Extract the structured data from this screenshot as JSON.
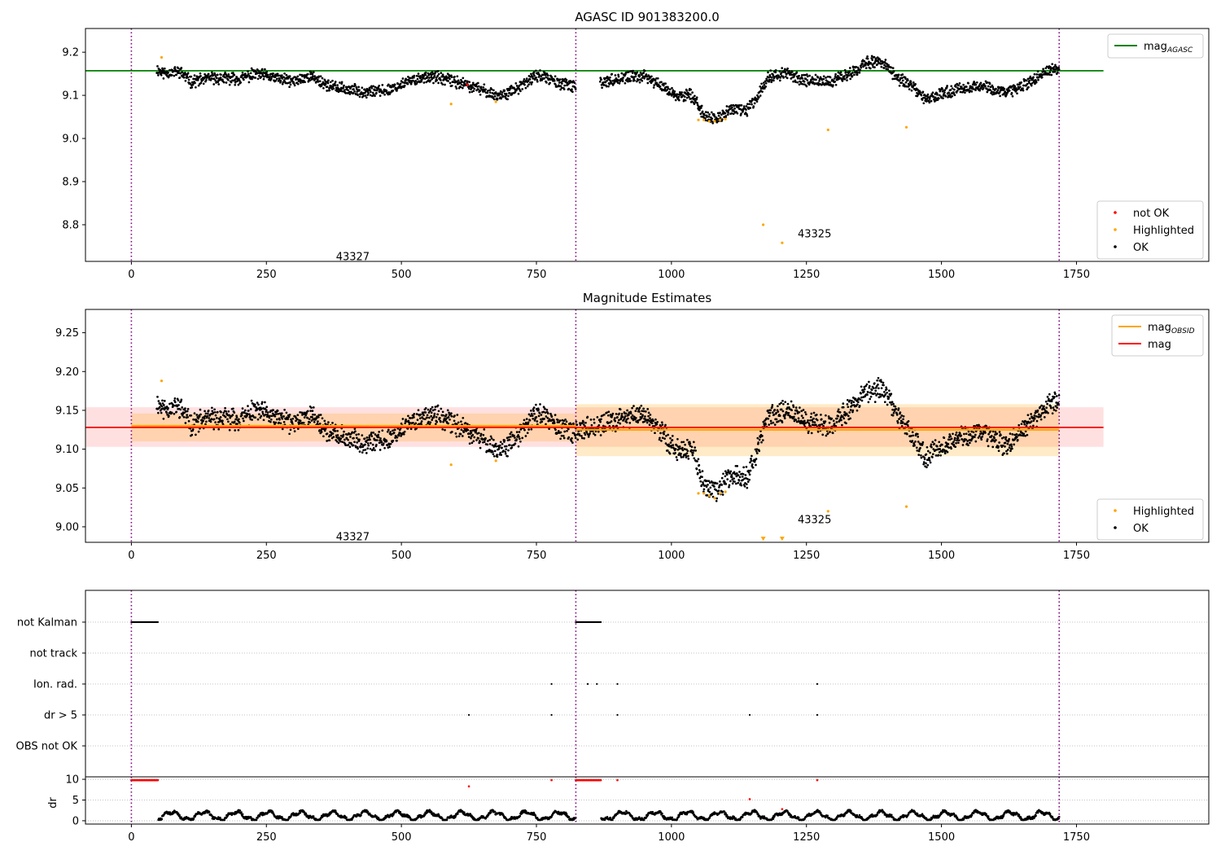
{
  "figure": {
    "title": "AGASC ID 901383200.0"
  },
  "chart_data": [
    {
      "type": "scatter",
      "title": "AGASC ID 901383200.0",
      "xlabel": "",
      "ylabel": "",
      "xlim": [
        -85,
        1995
      ],
      "ylim": [
        8.715,
        9.255
      ],
      "xticks": [
        0,
        250,
        500,
        750,
        1000,
        1250,
        1500,
        1750
      ],
      "yticks": [
        8.8,
        8.9,
        9.0,
        9.1,
        9.2
      ],
      "grid": false,
      "legend_top": {
        "placement": "top-right",
        "entries": [
          {
            "label": "mag",
            "sub": "AGASC",
            "color": "#008000"
          }
        ]
      },
      "legend_bottom": {
        "placement": "bottom-right",
        "entries": [
          {
            "label": "not OK",
            "color": "#ff0000"
          },
          {
            "label": "Highlighted",
            "color": "#ffa500"
          },
          {
            "label": "OK",
            "color": "#000000"
          }
        ]
      },
      "hlines": [
        {
          "y": 9.157,
          "x0": -85,
          "x1": 1800,
          "color": "#008000"
        }
      ],
      "vlines": [
        0,
        823,
        1718
      ],
      "annotations": [
        {
          "text": "43327",
          "x": 410,
          "y": 8.725
        },
        {
          "text": "43325",
          "x": 1265,
          "y": 8.778
        }
      ],
      "series": [
        {
          "name": "OK",
          "color": "#000000",
          "segments": [
            {
              "x0": 47,
              "x1": 823,
              "anchors": [
                [
                  47,
                  9.16
                ],
                [
                  60,
                  9.152
                ],
                [
                  90,
                  9.155
                ],
                [
                  110,
                  9.132
                ],
                [
                  150,
                  9.14
                ],
                [
                  200,
                  9.138
                ],
                [
                  230,
                  9.15
                ],
                [
                  300,
                  9.132
                ],
                [
                  330,
                  9.145
                ],
                [
                  370,
                  9.12
                ],
                [
                  420,
                  9.11
                ],
                [
                  470,
                  9.11
                ],
                [
                  510,
                  9.13
                ],
                [
                  550,
                  9.145
                ],
                [
                  600,
                  9.132
                ],
                [
                  650,
                  9.112
                ],
                [
                  680,
                  9.098
                ],
                [
                  720,
                  9.118
                ],
                [
                  750,
                  9.148
                ],
                [
                  790,
                  9.13
                ],
                [
                  823,
                  9.118
                ]
              ],
              "spread": 0.02
            },
            {
              "x0": 868,
              "x1": 1718,
              "anchors": [
                [
                  868,
                  9.13
                ],
                [
                  910,
                  9.14
                ],
                [
                  950,
                  9.145
                ],
                [
                  990,
                  9.115
                ],
                [
                  1010,
                  9.098
                ],
                [
                  1040,
                  9.1
                ],
                [
                  1060,
                  9.052
                ],
                [
                  1085,
                  9.045
                ],
                [
                  1110,
                  9.068
                ],
                [
                  1140,
                  9.065
                ],
                [
                  1160,
                  9.1
                ],
                [
                  1180,
                  9.145
                ],
                [
                  1215,
                  9.15
                ],
                [
                  1250,
                  9.135
                ],
                [
                  1290,
                  9.13
                ],
                [
                  1330,
                  9.15
                ],
                [
                  1360,
                  9.175
                ],
                [
                  1390,
                  9.178
                ],
                [
                  1420,
                  9.14
                ],
                [
                  1440,
                  9.125
                ],
                [
                  1470,
                  9.09
                ],
                [
                  1510,
                  9.108
                ],
                [
                  1560,
                  9.122
                ],
                [
                  1590,
                  9.118
                ],
                [
                  1620,
                  9.105
                ],
                [
                  1660,
                  9.13
                ],
                [
                  1700,
                  9.158
                ],
                [
                  1718,
                  9.16
                ]
              ],
              "spread": 0.02
            }
          ]
        },
        {
          "name": "Highlighted",
          "color": "#ffa500",
          "points": [
            [
              56,
              9.188
            ],
            [
              592,
              9.08
            ],
            [
              675,
              9.085
            ],
            [
              1050,
              9.043
            ],
            [
              1060,
              9.043
            ],
            [
              1070,
              9.04
            ],
            [
              1080,
              9.04
            ],
            [
              1090,
              9.043
            ],
            [
              1100,
              9.045
            ],
            [
              1170,
              8.8
            ],
            [
              1205,
              8.758
            ],
            [
              1290,
              9.02
            ],
            [
              1435,
              9.026
            ]
          ]
        },
        {
          "name": "not OK",
          "color": "#ff0000",
          "points": [
            [
              622,
              9.125
            ]
          ]
        }
      ]
    },
    {
      "type": "scatter",
      "title": "Magnitude Estimates",
      "xlabel": "",
      "ylabel": "",
      "xlim": [
        -85,
        1995
      ],
      "ylim": [
        8.98,
        9.28
      ],
      "xticks": [
        0,
        250,
        500,
        750,
        1000,
        1250,
        1500,
        1750
      ],
      "yticks": [
        9.0,
        9.05,
        9.1,
        9.15,
        9.2,
        9.25
      ],
      "grid": false,
      "legend_top": {
        "placement": "top-right",
        "entries": [
          {
            "label": "mag",
            "sub": "OBSID",
            "color": "#ffa500"
          },
          {
            "label": "mag",
            "color": "#ff0000"
          }
        ]
      },
      "legend_bottom": {
        "placement": "bottom-right",
        "entries": [
          {
            "label": "Highlighted",
            "color": "#ffa500"
          },
          {
            "label": "OK",
            "color": "#000000"
          }
        ]
      },
      "bands": [
        {
          "x0": -85,
          "x1": 1800,
          "y0": 9.103,
          "y1": 9.154,
          "color": "rgba(255,0,0,0.12)"
        },
        {
          "x0": 0,
          "x1": 823,
          "y0": 9.11,
          "y1": 9.146,
          "color": "rgba(255,165,0,0.22)"
        },
        {
          "x0": 823,
          "x1": 1718,
          "y0": 9.091,
          "y1": 9.158,
          "color": "rgba(255,165,0,0.22)"
        }
      ],
      "hlines": [
        {
          "y": 9.13,
          "x0": 0,
          "x1": 823,
          "color": "#ffa500"
        },
        {
          "y": 9.125,
          "x0": 823,
          "x1": 1718,
          "color": "#ffa500"
        },
        {
          "y": 9.128,
          "x0": -85,
          "x1": 1800,
          "color": "#ff0000"
        }
      ],
      "vlines": [
        0,
        823,
        1718
      ],
      "annotations": [
        {
          "text": "43327",
          "x": 410,
          "y": 8.987
        },
        {
          "text": "43325",
          "x": 1265,
          "y": 9.009
        }
      ],
      "series": [
        {
          "name": "OK",
          "color": "#000000",
          "segments": [
            {
              "x0": 47,
              "x1": 823,
              "anchors": [
                [
                  47,
                  9.16
                ],
                [
                  60,
                  9.152
                ],
                [
                  90,
                  9.155
                ],
                [
                  110,
                  9.132
                ],
                [
                  150,
                  9.14
                ],
                [
                  200,
                  9.138
                ],
                [
                  230,
                  9.15
                ],
                [
                  300,
                  9.132
                ],
                [
                  330,
                  9.145
                ],
                [
                  370,
                  9.12
                ],
                [
                  420,
                  9.11
                ],
                [
                  470,
                  9.11
                ],
                [
                  510,
                  9.13
                ],
                [
                  550,
                  9.145
                ],
                [
                  600,
                  9.132
                ],
                [
                  650,
                  9.112
                ],
                [
                  680,
                  9.098
                ],
                [
                  720,
                  9.118
                ],
                [
                  750,
                  9.148
                ],
                [
                  790,
                  9.13
                ],
                [
                  823,
                  9.118
                ]
              ],
              "spread": 0.02
            },
            {
              "x0": 823,
              "x1": 1718,
              "anchors": [
                [
                  823,
                  9.125
                ],
                [
                  868,
                  9.13
                ],
                [
                  910,
                  9.14
                ],
                [
                  950,
                  9.145
                ],
                [
                  990,
                  9.115
                ],
                [
                  1010,
                  9.098
                ],
                [
                  1040,
                  9.1
                ],
                [
                  1060,
                  9.052
                ],
                [
                  1085,
                  9.045
                ],
                [
                  1110,
                  9.068
                ],
                [
                  1140,
                  9.065
                ],
                [
                  1160,
                  9.1
                ],
                [
                  1180,
                  9.145
                ],
                [
                  1215,
                  9.15
                ],
                [
                  1250,
                  9.135
                ],
                [
                  1290,
                  9.13
                ],
                [
                  1330,
                  9.15
                ],
                [
                  1360,
                  9.175
                ],
                [
                  1390,
                  9.178
                ],
                [
                  1420,
                  9.14
                ],
                [
                  1440,
                  9.125
                ],
                [
                  1470,
                  9.09
                ],
                [
                  1510,
                  9.108
                ],
                [
                  1560,
                  9.122
                ],
                [
                  1590,
                  9.118
                ],
                [
                  1620,
                  9.105
                ],
                [
                  1660,
                  9.13
                ],
                [
                  1700,
                  9.158
                ],
                [
                  1718,
                  9.16
                ]
              ],
              "spread": 0.02
            }
          ]
        },
        {
          "name": "Highlighted",
          "color": "#ffa500",
          "points": [
            [
              56,
              9.188
            ],
            [
              592,
              9.08
            ],
            [
              675,
              9.085
            ],
            [
              1050,
              9.043
            ],
            [
              1060,
              9.043
            ],
            [
              1070,
              9.04
            ],
            [
              1080,
              9.037
            ],
            [
              1090,
              9.043
            ],
            [
              1100,
              9.045
            ],
            [
              1290,
              9.02
            ],
            [
              1435,
              9.026
            ]
          ]
        },
        {
          "name": "Highlighted (off-axis)",
          "color": "#ffa500",
          "marker": "triangle",
          "points": [
            [
              1170,
              8.984
            ],
            [
              1205,
              8.984
            ]
          ]
        }
      ]
    },
    {
      "type": "scatter",
      "title": "",
      "xlim": [
        -85,
        1995
      ],
      "rows": [
        "not Kalman",
        "not track",
        "Ion. rad.",
        "dr > 5",
        "OBS not OK"
      ],
      "vlines": [
        0,
        823,
        1718
      ],
      "flags": {
        "not Kalman": {
          "ranges": [
            [
              0,
              50
            ],
            [
              823,
              870
            ]
          ]
        },
        "not track": {
          "points": []
        },
        "Ion. rad.": {
          "points": [
            778,
            845,
            862,
            900,
            1270
          ]
        },
        "dr > 5": {
          "points": [
            625,
            778,
            900,
            1145,
            1270
          ]
        },
        "OBS not OK": {
          "points": []
        }
      }
    },
    {
      "type": "scatter",
      "title": "",
      "ylabel": "dr",
      "xlim": [
        -85,
        1995
      ],
      "ylim": [
        -0.8,
        10.6
      ],
      "xticks": [
        0,
        250,
        500,
        750,
        1000,
        1250,
        1500,
        1750
      ],
      "yticks": [
        0,
        5,
        10
      ],
      "grid": true,
      "vlines": [
        0,
        823,
        1718
      ],
      "series": [
        {
          "name": "dr",
          "color": "#000000",
          "segments": [
            [
              50,
              823
            ],
            [
              870,
              1718
            ]
          ],
          "range": [
            0.2,
            2.6
          ]
        },
        {
          "name": "dr > 5",
          "color": "#ff0000",
          "clipped": [
            [
              0,
              50
            ],
            [
              823,
              870
            ]
          ],
          "points": [
            [
              625,
              8.3
            ],
            [
              778,
              9.8
            ],
            [
              900,
              9.8
            ],
            [
              1145,
              5.2
            ],
            [
              1205,
              2.8
            ],
            [
              1270,
              9.8
            ]
          ]
        }
      ]
    }
  ]
}
